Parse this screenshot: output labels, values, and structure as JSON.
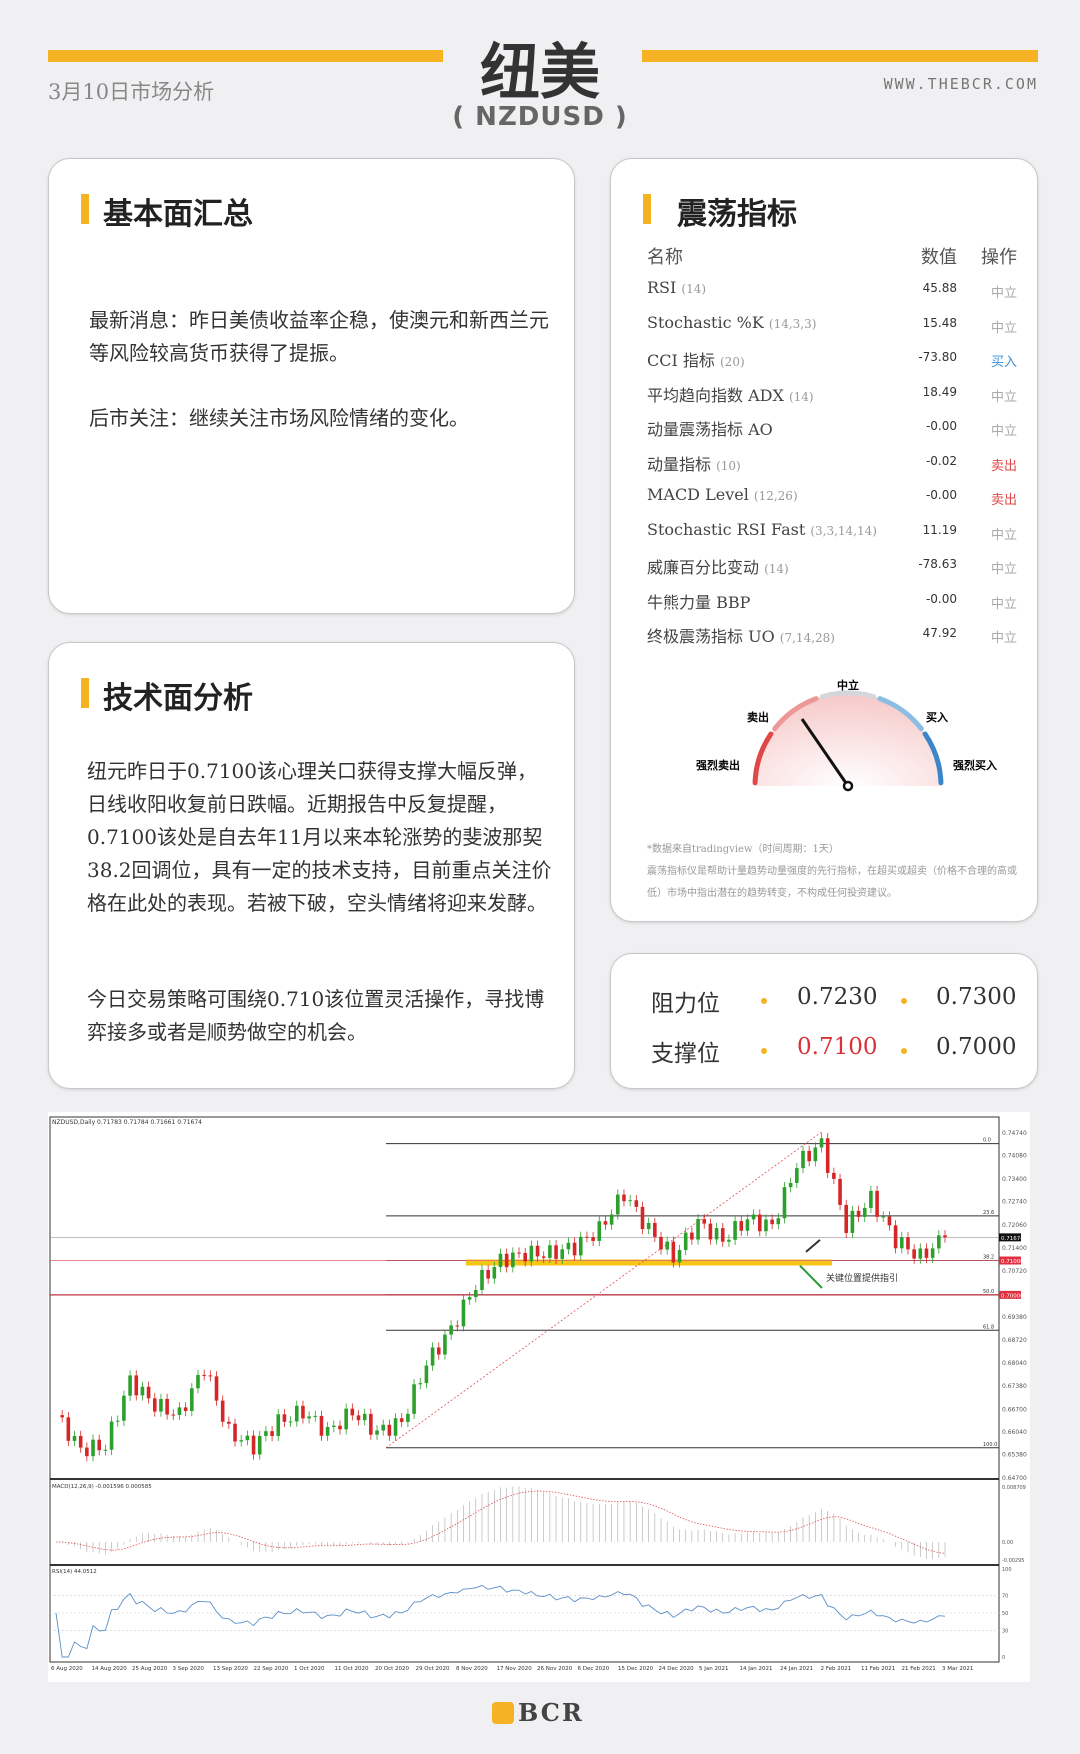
{
  "header": {
    "title": "纽美",
    "subtitle": "( NZDUSD )",
    "date": "3月10日市场分析",
    "website": "WWW.THEBCR.COM"
  },
  "colors": {
    "accent": "#f5b223",
    "sell": "#e04848",
    "buy": "#3a8fd6",
    "neutral": "#aaaaaa"
  },
  "fundamental": {
    "heading": "基本面汇总",
    "paragraphs": [
      "最新消息：昨日美债收益率企稳，使澳元和新西兰元等风险较高货币获得了提振。",
      "后市关注：继续关注市场风险情绪的变化。"
    ]
  },
  "technical": {
    "heading": "技术面分析",
    "paragraphs": [
      "纽元昨日于0.7100该心理关口获得支撑大幅反弹，日线收阳收复前日跌幅。近期报告中反复提醒，0.7100该处是自去年11月以来本轮涨势的斐波那契38.2回调位，具有一定的技术支持，目前重点关注价格在此处的表现。若被下破，空头情绪将迎来发酵。",
      "今日交易策略可围绕0.710该位置灵活操作，寻找博弈接多或者是顺势做空的机会。"
    ]
  },
  "oscillators": {
    "heading": "震荡指标",
    "columns": [
      "名称",
      "数值",
      "操作"
    ],
    "rows": [
      {
        "name": "RSI",
        "param": "(14)",
        "value": "45.88",
        "action": "中立",
        "type": "neutral"
      },
      {
        "name": "Stochastic %K",
        "param": "(14,3,3)",
        "value": "15.48",
        "action": "中立",
        "type": "neutral"
      },
      {
        "name": "CCI 指标",
        "param": "(20)",
        "value": "-73.80",
        "action": "买入",
        "type": "buy"
      },
      {
        "name": "平均趋向指数 ADX",
        "param": "(14)",
        "value": "18.49",
        "action": "中立",
        "type": "neutral"
      },
      {
        "name": "动量震荡指标 AO",
        "param": "",
        "value": "-0.00",
        "action": "中立",
        "type": "neutral"
      },
      {
        "name": "动量指标",
        "param": "(10)",
        "value": "-0.02",
        "action": "卖出",
        "type": "sell"
      },
      {
        "name": "MACD Level",
        "param": "(12,26)",
        "value": "-0.00",
        "action": "卖出",
        "type": "sell"
      },
      {
        "name": "Stochastic RSI Fast",
        "param": "(3,3,14,14)",
        "value": "11.19",
        "action": "中立",
        "type": "neutral"
      },
      {
        "name": "威廉百分比变动",
        "param": "(14)",
        "value": "-78.63",
        "action": "中立",
        "type": "neutral"
      },
      {
        "name": "牛熊力量 BBP",
        "param": "",
        "value": "-0.00",
        "action": "中立",
        "type": "neutral"
      },
      {
        "name": "终极震荡指标 UO",
        "param": "(7,14,28)",
        "value": "47.92",
        "action": "中立",
        "type": "neutral"
      }
    ],
    "gauge": {
      "labels": [
        "强烈卖出",
        "卖出",
        "中立",
        "买入",
        "强烈买入"
      ],
      "reading": "卖出"
    },
    "note1": "*数据来自tradingview（时间周期：1天）",
    "note2": "震荡指标仪是帮助计量趋势动量强度的先行指标，在超买或超卖（价格不合理的高或低）市场中指出潜在的趋势转变，不构成任何投资建议。"
  },
  "levels": {
    "resistance_label": "阻力位",
    "resistance": [
      "0.7230",
      "0.7300"
    ],
    "support_label": "支撑位",
    "support": [
      "0.7100",
      "0.7000"
    ]
  },
  "chart_data": {
    "type": "candlestick",
    "header": "NZDUSD,Daily  0.71783 0.71784 0.71661 0.71674",
    "price_ticks": [
      "0.74740",
      "0.74080",
      "0.73400",
      "0.72740",
      "0.72060",
      "0.71400",
      "0.70720",
      "0.69380",
      "0.68720",
      "0.68040",
      "0.67380",
      "0.66700",
      "0.66040",
      "0.65380",
      "0.64700"
    ],
    "current_price": "0.71674",
    "marked_prices": [
      "0.71000",
      "0.70000"
    ],
    "fib_levels": [
      {
        "label": "0.0",
        "price": 0.744
      },
      {
        "label": "23.6",
        "price": 0.723
      },
      {
        "label": "38.2",
        "price": 0.71
      },
      {
        "label": "50.0",
        "price": 0.7
      },
      {
        "label": "61.8",
        "price": 0.6897
      },
      {
        "label": "100.0",
        "price": 0.6555
      }
    ],
    "annotation": "关键位置提供指引",
    "dates": [
      "6 Aug 2020",
      "14 Aug 2020",
      "25 Aug 2020",
      "3 Sep 2020",
      "13 Sep 2020",
      "22 Sep 2020",
      "1 Oct 2020",
      "11 Oct 2020",
      "20 Oct 2020",
      "29 Oct 2020",
      "8 Nov 2020",
      "17 Nov 2020",
      "26 Nov 2020",
      "6 Dec 2020",
      "15 Dec 2020",
      "24 Dec 2020",
      "5 Jan 2021",
      "14 Jan 2021",
      "24 Jan 2021",
      "2 Feb 2021",
      "11 Feb 2021",
      "21 Feb 2021",
      "3 Mar 2021"
    ],
    "close_keypoints": [
      0.665,
      0.655,
      0.656,
      0.675,
      0.668,
      0.665,
      0.679,
      0.66,
      0.656,
      0.663,
      0.666,
      0.66,
      0.666,
      0.66,
      0.663,
      0.68,
      0.69,
      0.703,
      0.71,
      0.712,
      0.712,
      0.714,
      0.719,
      0.7295,
      0.719,
      0.711,
      0.721,
      0.716,
      0.722,
      0.72,
      0.738,
      0.744,
      0.72,
      0.728,
      0.716,
      0.711,
      0.7167
    ],
    "macd_label": "MACD(12,26,9) -0.001596 0.000585",
    "macd_ticks": [
      "0.008709",
      "0.00",
      "-0.00295"
    ],
    "rsi_label": "RSI(14) 44.0512",
    "rsi_ticks": [
      "100",
      "70",
      "50",
      "30",
      "0"
    ],
    "candle_colors": {
      "up": "#2ca02c",
      "down": "#d62728"
    }
  },
  "footer": {
    "logo": "BCR"
  }
}
